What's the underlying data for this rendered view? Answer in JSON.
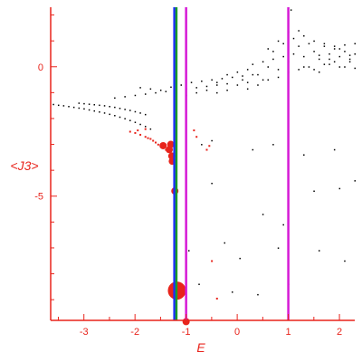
{
  "chart_data": {
    "type": "scatter",
    "xlabel": "E",
    "ylabel": "<J3>",
    "xlim": [
      -3.65,
      2.3
    ],
    "ylim": [
      -9.8,
      2.3
    ],
    "x_ticks": [
      -3,
      -2,
      -1,
      0,
      1,
      2
    ],
    "y_ticks": [
      0,
      -5
    ],
    "grid": false,
    "axis_color": "#e8241c",
    "vertical_lines": [
      {
        "x": -1.23,
        "color": "#1a2cff"
      },
      {
        "x": -1.19,
        "color": "#1a9a2c"
      },
      {
        "x": -1.0,
        "color": "#d61ad6"
      },
      {
        "x": 1.0,
        "color": "#d61ad6"
      }
    ],
    "series": [
      {
        "color": "#000000",
        "size": 1,
        "points": [
          [
            -3.6,
            -1.45
          ],
          [
            -3.5,
            -1.48
          ],
          [
            -3.4,
            -1.5
          ],
          [
            -3.3,
            -1.53
          ],
          [
            -3.2,
            -1.56
          ],
          [
            -3.1,
            -1.59
          ],
          [
            -3.0,
            -1.62
          ],
          [
            -2.9,
            -1.66
          ],
          [
            -2.8,
            -1.7
          ],
          [
            -2.7,
            -1.74
          ],
          [
            -2.6,
            -1.78
          ],
          [
            -2.5,
            -1.83
          ],
          [
            -2.4,
            -1.88
          ],
          [
            -2.3,
            -1.94
          ],
          [
            -2.2,
            -2.0
          ],
          [
            -2.1,
            -2.07
          ],
          [
            -2.0,
            -2.14
          ],
          [
            -1.9,
            -2.22
          ],
          [
            -1.8,
            -2.3
          ],
          [
            -1.7,
            -2.4
          ],
          [
            -3.1,
            -1.4
          ],
          [
            -3.0,
            -1.42
          ],
          [
            -2.9,
            -1.44
          ],
          [
            -2.8,
            -1.46
          ],
          [
            -2.7,
            -1.48
          ],
          [
            -2.6,
            -1.5
          ],
          [
            -2.5,
            -1.53
          ],
          [
            -2.4,
            -1.56
          ],
          [
            -2.3,
            -1.6
          ],
          [
            -2.2,
            -1.64
          ],
          [
            -2.1,
            -1.68
          ],
          [
            -2.0,
            -1.73
          ],
          [
            -1.9,
            -1.78
          ],
          [
            -1.8,
            -1.84
          ],
          [
            -2.4,
            -1.2
          ],
          [
            -2.2,
            -1.15
          ],
          [
            -2.0,
            -1.1
          ],
          [
            -1.8,
            -1.05
          ],
          [
            -1.6,
            -1.0
          ],
          [
            -1.4,
            -0.95
          ],
          [
            -1.2,
            -0.9
          ],
          [
            -1.0,
            -0.85
          ],
          [
            -0.8,
            -0.8
          ],
          [
            -0.6,
            -0.75
          ],
          [
            -0.4,
            -0.7
          ],
          [
            -0.2,
            -0.65
          ],
          [
            -1.9,
            -0.8
          ],
          [
            -1.7,
            -0.85
          ],
          [
            -1.5,
            -0.9
          ],
          [
            -1.3,
            -0.78
          ],
          [
            -1.1,
            -0.7
          ],
          [
            -0.9,
            -0.6
          ],
          [
            -0.7,
            -0.55
          ],
          [
            -0.5,
            -0.5
          ],
          [
            -0.3,
            -0.45
          ],
          [
            -0.1,
            -0.4
          ],
          [
            0.1,
            -0.35
          ],
          [
            0.3,
            -0.3
          ],
          [
            -0.6,
            -0.9
          ],
          [
            -0.4,
            -0.6
          ],
          [
            -0.2,
            -0.3
          ],
          [
            0.0,
            -0.2
          ],
          [
            0.1,
            -0.5
          ],
          [
            0.2,
            -0.1
          ],
          [
            0.3,
            0.1
          ],
          [
            0.4,
            -0.3
          ],
          [
            0.5,
            0.2
          ],
          [
            0.6,
            0.0
          ],
          [
            0.7,
            0.3
          ],
          [
            0.8,
            -0.1
          ],
          [
            0.9,
            0.4
          ],
          [
            1.0,
            0.2
          ],
          [
            0.2,
            -0.6
          ],
          [
            0.4,
            -0.7
          ],
          [
            0.6,
            -0.5
          ],
          [
            0.8,
            -0.4
          ],
          [
            1.0,
            -0.2
          ],
          [
            1.2,
            -0.1
          ],
          [
            1.4,
            0.0
          ],
          [
            1.6,
            -0.2
          ],
          [
            1.8,
            0.1
          ],
          [
            2.0,
            0.0
          ],
          [
            2.2,
            0.2
          ],
          [
            1.1,
            0.5
          ],
          [
            1.2,
            0.8
          ],
          [
            1.3,
            0.4
          ],
          [
            1.4,
            0.9
          ],
          [
            1.5,
            0.6
          ],
          [
            1.6,
            0.3
          ],
          [
            1.7,
            0.8
          ],
          [
            1.8,
            0.5
          ],
          [
            1.9,
            0.7
          ],
          [
            2.0,
            0.4
          ],
          [
            2.1,
            0.6
          ],
          [
            2.2,
            0.3
          ],
          [
            2.3,
            0.5
          ],
          [
            0.7,
            0.6
          ],
          [
            0.9,
            0.9
          ],
          [
            1.1,
            1.1
          ],
          [
            1.3,
            1.2
          ],
          [
            1.5,
            1.0
          ],
          [
            1.7,
            0.9
          ],
          [
            1.9,
            0.8
          ],
          [
            2.1,
            0.85
          ],
          [
            2.3,
            0.9
          ],
          [
            1.2,
            1.4
          ],
          [
            1.0,
            1.35
          ],
          [
            0.8,
            1.0
          ],
          [
            0.6,
            0.7
          ],
          [
            1.05,
            2.2
          ],
          [
            1.3,
            0.0
          ],
          [
            1.5,
            -0.1
          ],
          [
            1.7,
            0.1
          ],
          [
            1.9,
            0.2
          ],
          [
            2.1,
            0.0
          ],
          [
            2.3,
            -0.05
          ],
          [
            1.6,
            0.45
          ],
          [
            1.8,
            0.3
          ],
          [
            2.0,
            0.7
          ],
          [
            2.2,
            0.45
          ],
          [
            -0.2,
            -0.9
          ],
          [
            0.0,
            -0.7
          ],
          [
            0.2,
            -0.85
          ],
          [
            0.5,
            -0.5
          ],
          [
            -0.4,
            -1.0
          ],
          [
            -0.8,
            -1.0
          ],
          [
            -1.0,
            -1.1
          ],
          [
            -1.2,
            -1.15
          ],
          [
            -0.7,
            -3.0
          ],
          [
            -0.5,
            -2.85
          ],
          [
            0.3,
            -3.2
          ],
          [
            0.7,
            -3.0
          ],
          [
            1.3,
            -3.4
          ],
          [
            1.9,
            -3.2
          ],
          [
            2.0,
            -4.7
          ],
          [
            2.3,
            -4.4
          ],
          [
            1.5,
            -4.8
          ],
          [
            0.5,
            -5.7
          ],
          [
            0.9,
            -6.1
          ],
          [
            -0.25,
            -6.8
          ],
          [
            0.05,
            -7.4
          ],
          [
            0.8,
            -7.0
          ],
          [
            1.6,
            -7.1
          ],
          [
            2.1,
            -7.5
          ],
          [
            1.0,
            -8.4
          ],
          [
            0.4,
            -8.8
          ],
          [
            -0.1,
            -8.7
          ],
          [
            -0.95,
            -7.1
          ],
          [
            -0.75,
            -8.4
          ],
          [
            -0.5,
            -4.5
          ]
        ]
      },
      {
        "color": "#e8241c",
        "size": 1.5,
        "points": [
          [
            -2.1,
            -2.5
          ],
          [
            -2.0,
            -2.55
          ],
          [
            -1.9,
            -2.62
          ],
          [
            -1.8,
            -2.7
          ],
          [
            -1.75,
            -2.75
          ],
          [
            -1.7,
            -2.78
          ],
          [
            -1.65,
            -2.85
          ],
          [
            -1.6,
            -2.92
          ],
          [
            -1.55,
            -3.0
          ],
          [
            -1.5,
            -3.08
          ],
          [
            -1.45,
            -3.12
          ],
          [
            -1.4,
            -3.2
          ],
          [
            -0.85,
            -2.45
          ],
          [
            -0.8,
            -2.7
          ],
          [
            -0.6,
            -3.2
          ],
          [
            -0.55,
            -3.05
          ],
          [
            -0.5,
            -7.5
          ],
          [
            -0.4,
            -8.95
          ],
          [
            -1.8,
            -2.4
          ],
          [
            -1.95,
            -2.45
          ]
        ]
      },
      {
        "color": "#e8241c",
        "size": 4,
        "points": [
          [
            -1.33,
            -3.2
          ],
          [
            -1.28,
            -3.45
          ],
          [
            -1.27,
            -3.65
          ],
          [
            -1.22,
            -4.8
          ],
          [
            -1.0,
            -9.85
          ],
          [
            -1.45,
            -3.05
          ],
          [
            -1.3,
            -3.0
          ]
        ]
      },
      {
        "color": "#e8241c",
        "size": 10,
        "points": [
          [
            -1.18,
            -8.65
          ]
        ]
      }
    ]
  }
}
